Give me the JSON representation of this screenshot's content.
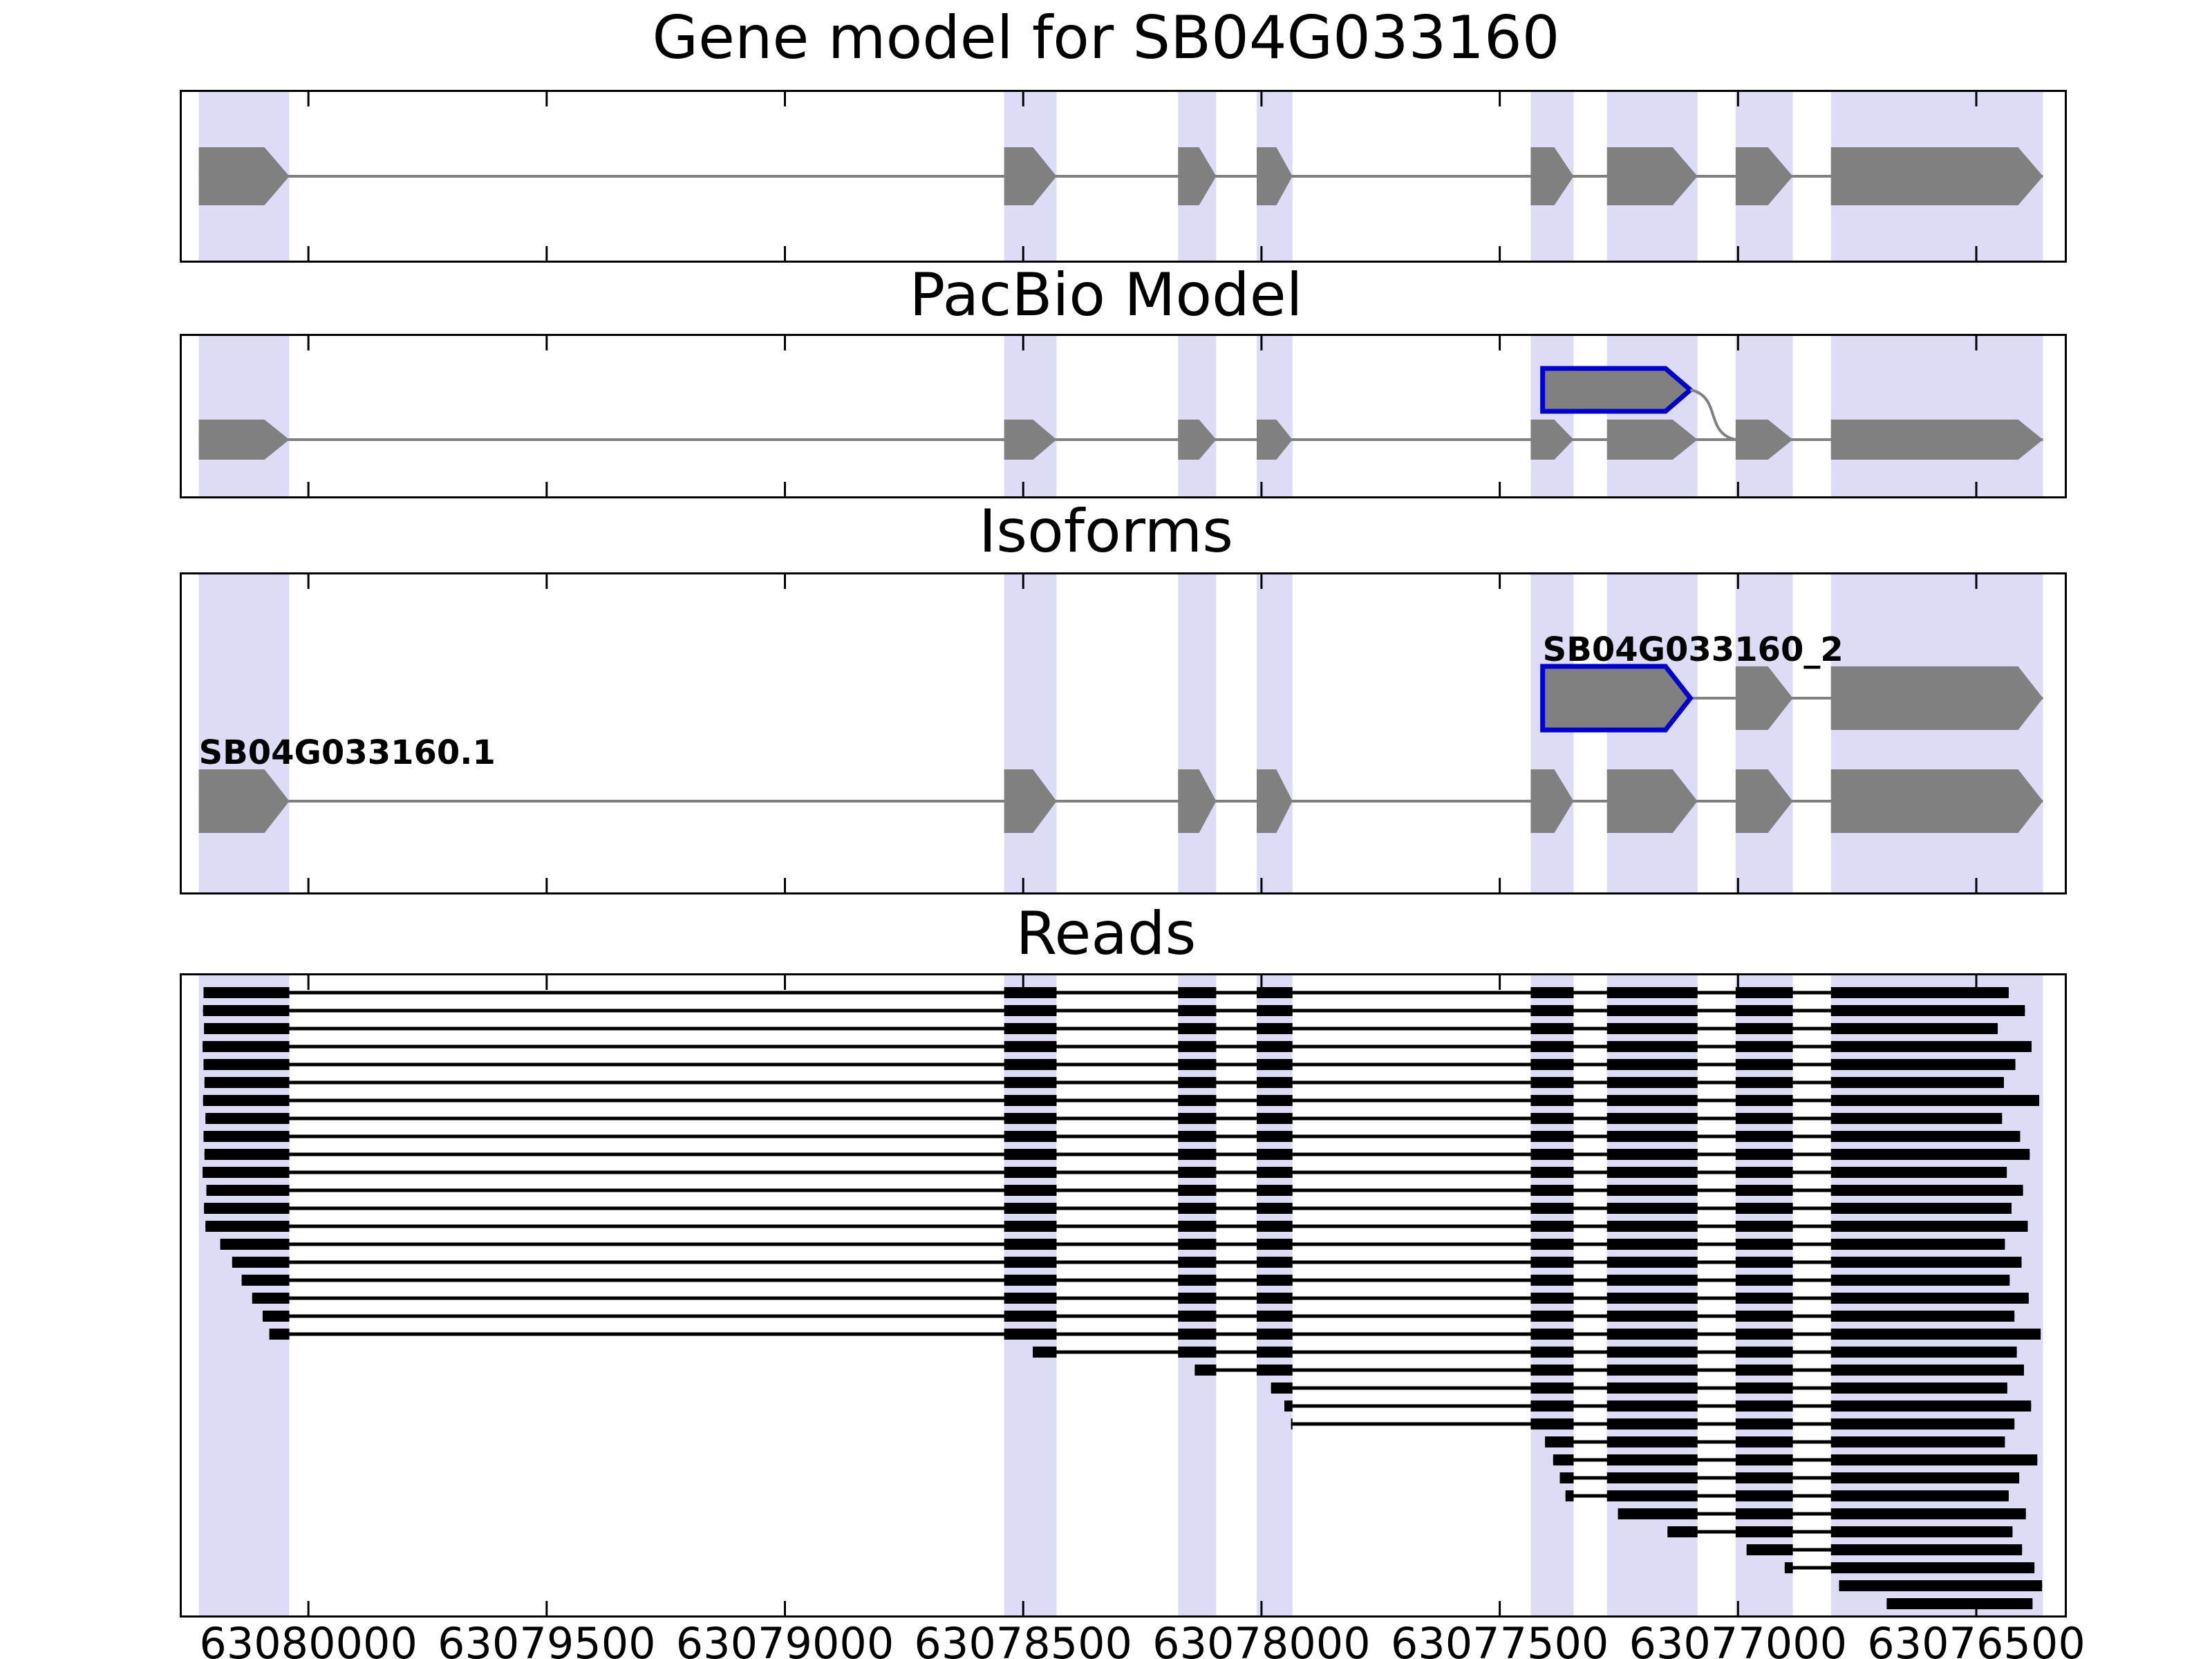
{
  "chart_data": {
    "type": "genome-browser-tracks",
    "title": "Gene model for SB04G033160",
    "track_titles": [
      "Gene model for SB04G033160",
      "PacBio Model",
      "Isoforms",
      "Reads"
    ],
    "x_axis": {
      "reversed": true,
      "range_bp": [
        63080270,
        63076310
      ],
      "ticks_bp": [
        63080000,
        63079500,
        63079000,
        63078500,
        63078000,
        63077500,
        63077000,
        63076500
      ],
      "tick_labels": [
        "63080000",
        "63079500",
        "63079000",
        "63078500",
        "63078000",
        "63077500",
        "63077000",
        "63076500"
      ]
    },
    "colors": {
      "exon_fill": "#808080",
      "intron_line": "#808080",
      "highlight_band": "#dcdcf6",
      "novel_exon_outline": "#0000cc",
      "read": "#000000",
      "axis": "#000000"
    },
    "gene_model": {
      "gene_id": "SB04G033160",
      "strand_arrow": "right",
      "exons_bp": [
        [
          63080230,
          63080040
        ],
        [
          63078540,
          63078430
        ],
        [
          63078175,
          63078095
        ],
        [
          63078010,
          63077935
        ],
        [
          63077435,
          63077345
        ],
        [
          63077275,
          63077085
        ],
        [
          63077005,
          63076885
        ],
        [
          63076805,
          63076360
        ]
      ]
    },
    "pacbio_model": {
      "exons_bp": [
        [
          63080230,
          63080040
        ],
        [
          63078540,
          63078430
        ],
        [
          63078175,
          63078095
        ],
        [
          63078010,
          63077935
        ],
        [
          63077435,
          63077345
        ],
        [
          63077275,
          63077085
        ],
        [
          63077005,
          63076885
        ],
        [
          63076805,
          63076360
        ]
      ],
      "novel_exon_bp": [
        63077410,
        63077100
      ]
    },
    "isoforms": [
      {
        "label": "SB04G033160.1",
        "exons_bp": [
          [
            63080230,
            63080040
          ],
          [
            63078540,
            63078430
          ],
          [
            63078175,
            63078095
          ],
          [
            63078010,
            63077935
          ],
          [
            63077435,
            63077345
          ],
          [
            63077275,
            63077085
          ],
          [
            63077005,
            63076885
          ],
          [
            63076805,
            63076360
          ]
        ],
        "novel_exon_index": null
      },
      {
        "label": "SB04G033160_2",
        "exons_bp": [
          [
            63077410,
            63077100
          ],
          [
            63077005,
            63076885
          ],
          [
            63076805,
            63076360
          ]
        ],
        "novel_exon_index": 0
      }
    ],
    "highlight_bands_bp": [
      [
        63080230,
        63080040
      ],
      [
        63078540,
        63078430
      ],
      [
        63078175,
        63078095
      ],
      [
        63078010,
        63077935
      ],
      [
        63077435,
        63077345
      ],
      [
        63077275,
        63077085
      ],
      [
        63077005,
        63076885
      ],
      [
        63076805,
        63076360
      ]
    ],
    "reads_bp": [
      [
        63080220,
        63076432
      ],
      [
        63080221,
        63076398
      ],
      [
        63080219,
        63076455
      ],
      [
        63080222,
        63076384
      ],
      [
        63080220,
        63076418
      ],
      [
        63080218,
        63076442
      ],
      [
        63080221,
        63076368
      ],
      [
        63080216,
        63076446
      ],
      [
        63080220,
        63076408
      ],
      [
        63080218,
        63076388
      ],
      [
        63080222,
        63076436
      ],
      [
        63080214,
        63076402
      ],
      [
        63080219,
        63076426
      ],
      [
        63080216,
        63076392
      ],
      [
        63080185,
        63076440
      ],
      [
        63080160,
        63076405
      ],
      [
        63080140,
        63076430
      ],
      [
        63080118,
        63076390
      ],
      [
        63080096,
        63076420
      ],
      [
        63080082,
        63076365
      ],
      [
        63078480,
        63076415
      ],
      [
        63078140,
        63076400
      ],
      [
        63077980,
        63076435
      ],
      [
        63077952,
        63076385
      ],
      [
        63077938,
        63076420
      ],
      [
        63077405,
        63076440
      ],
      [
        63077388,
        63076372
      ],
      [
        63077374,
        63076410
      ],
      [
        63077362,
        63076432
      ],
      [
        63077252,
        63076396
      ],
      [
        63077148,
        63076424
      ],
      [
        63076982,
        63076404
      ],
      [
        63076902,
        63076378
      ],
      [
        63076788,
        63076362
      ],
      [
        63076688,
        63076382
      ]
    ]
  }
}
